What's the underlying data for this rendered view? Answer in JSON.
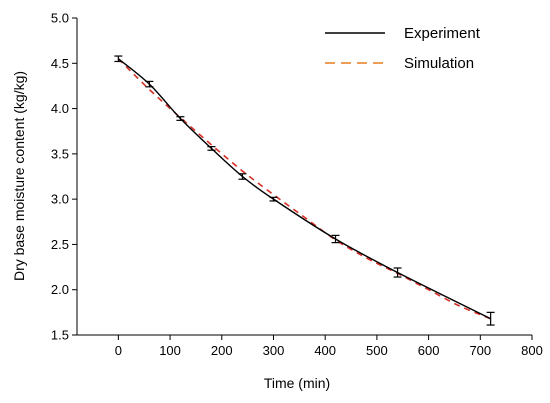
{
  "chart_data": {
    "type": "line",
    "xlabel": "Time (min)",
    "ylabel": "Dry base moisture content (kg/kg)",
    "xlim": [
      -80,
      800
    ],
    "ylim": [
      1.5,
      5.0
    ],
    "xticks": [
      "0",
      "100",
      "200",
      "300",
      "400",
      "500",
      "600",
      "700",
      "800"
    ],
    "yticks": [
      "1.5",
      "2.0",
      "2.5",
      "3.0",
      "3.5",
      "4.0",
      "4.5",
      "5.0"
    ],
    "grid": false,
    "legend_position": "top-right",
    "series": [
      {
        "name": "Experiment",
        "style": "solid",
        "color": "#000000",
        "x": [
          0,
          60,
          120,
          180,
          240,
          300,
          420,
          540,
          720
        ],
        "y": [
          4.55,
          4.27,
          3.89,
          3.56,
          3.25,
          3.0,
          2.56,
          2.19,
          1.68
        ],
        "error": [
          0.03,
          0.03,
          0.02,
          0.02,
          0.03,
          0.02,
          0.04,
          0.05,
          0.07
        ]
      },
      {
        "name": "Simulation",
        "style": "dashed",
        "color": "#d73027",
        "x": [
          0,
          60,
          120,
          180,
          240,
          300,
          360,
          420,
          480,
          540,
          600,
          660,
          720
        ],
        "y": [
          4.55,
          4.21,
          3.9,
          3.6,
          3.31,
          3.05,
          2.8,
          2.55,
          2.35,
          2.18,
          2.0,
          1.82,
          1.68
        ]
      }
    ]
  }
}
